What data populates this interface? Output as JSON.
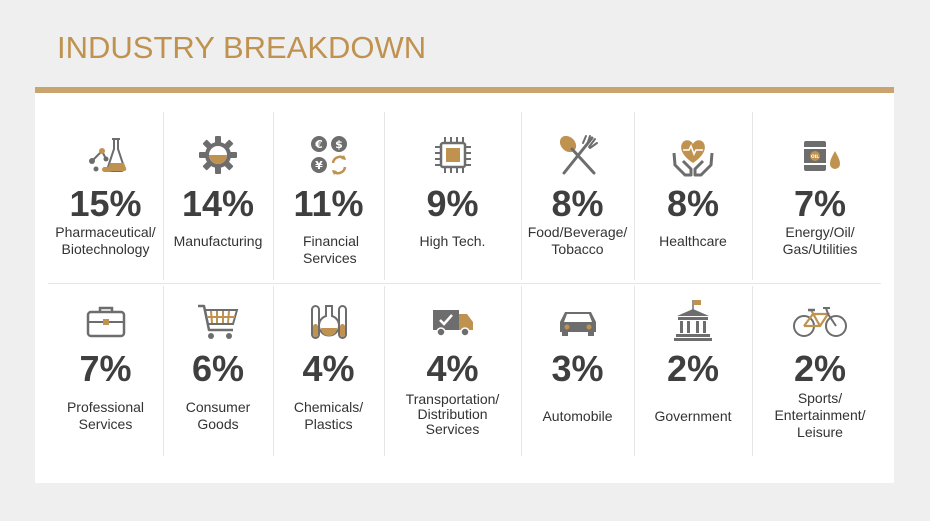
{
  "header": {
    "title": "INDUSTRY BREAKDOWN"
  },
  "colors": {
    "accent": "#c0924f",
    "icon_gray": "#6d6d6d",
    "text": "#333333"
  },
  "industries": [
    {
      "pct": "15%",
      "label": "Pharmaceutical/ Biotechnology",
      "icon": "pharma-icon"
    },
    {
      "pct": "14%",
      "label": "Manufacturing",
      "icon": "gear-icon"
    },
    {
      "pct": "11%",
      "label": "Financial Services",
      "icon": "currency-icon"
    },
    {
      "pct": "9%",
      "label": "High Tech.",
      "icon": "chip-icon"
    },
    {
      "pct": "8%",
      "label": "Food/Beverage/ Tobacco",
      "icon": "spoon-fork-icon"
    },
    {
      "pct": "8%",
      "label": "Healthcare",
      "icon": "heart-hands-icon"
    },
    {
      "pct": "7%",
      "label": "Energy/Oil/ Gas/Utilities",
      "icon": "oil-barrel-icon"
    },
    {
      "pct": "7%",
      "label": "Professional Services",
      "icon": "briefcase-icon"
    },
    {
      "pct": "6%",
      "label": "Consumer Goods",
      "icon": "shopping-cart-icon"
    },
    {
      "pct": "4%",
      "label": "Chemicals/ Plastics",
      "icon": "flask-icon"
    },
    {
      "pct": "4%",
      "label": "Transportation/ Distribution Services",
      "icon": "truck-icon"
    },
    {
      "pct": "3%",
      "label": "Automobile",
      "icon": "car-icon"
    },
    {
      "pct": "2%",
      "label": "Government",
      "icon": "government-building-icon"
    },
    {
      "pct": "2%",
      "label": "Sports/ Entertainment/ Leisure",
      "icon": "bicycle-icon"
    }
  ]
}
